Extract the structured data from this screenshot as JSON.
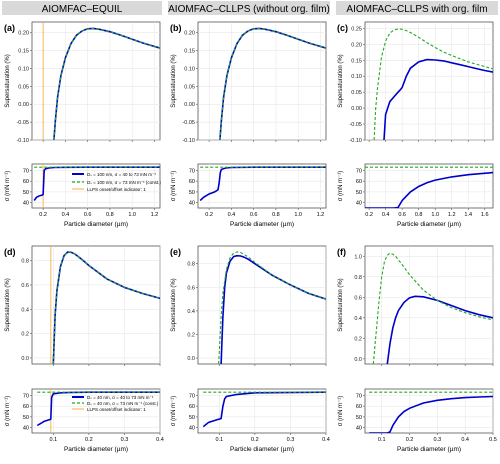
{
  "column_headers": [
    "AIOMFAC–EQUIL",
    "AIOMFAC–CLLPS (without org. film)",
    "AIOMFAC–CLLPS with org. film"
  ],
  "header_bg": "#d9d9d9",
  "colors": {
    "model": "#0000cc",
    "constant": "#22aa22",
    "indicator": "#f5b041"
  },
  "legend_top": {
    "solid": "Dₛ = 100 nm, σ = 40 to 73 mN m⁻¹",
    "dashed": "Dₛ = 100 nm, σ = 73 mN m⁻¹ (const.)",
    "indicator": "LLPS onset/offset indicator: 1"
  },
  "legend_bottom": {
    "solid": "Dₛ = 40 nm, σ = 40 to 73 mN m⁻¹",
    "dashed": "Dₛ = 40 nm, σ = 73 mN m⁻¹ (const.)",
    "indicator": "LLPS onset/offset indicator: 1"
  },
  "chart_data": [
    {
      "panel": "(a)",
      "type": "line",
      "xlabel": "Particle diameter (µm)",
      "ylabel": "Supersaturation (%)",
      "sublabel": "σ (mN m⁻¹)",
      "xlim": [
        0.1,
        1.25
      ],
      "xticks": [
        0.2,
        0.4,
        0.6,
        0.8,
        1.0,
        1.2
      ],
      "ylim": [
        -0.1,
        0.23
      ],
      "yticks": [
        -0.1,
        -0.05,
        0.0,
        0.05,
        0.1,
        0.15,
        0.2
      ],
      "ydec": 2,
      "slim": [
        35,
        76
      ],
      "sticks": [
        40,
        50,
        60,
        70
      ],
      "indicator_x": 0.2,
      "series": [
        {
          "style": "solid",
          "x": [
            0.297,
            0.31,
            0.33,
            0.36,
            0.4,
            0.45,
            0.5,
            0.55,
            0.6,
            0.65,
            0.7,
            0.8,
            0.9,
            1.0,
            1.1,
            1.25
          ],
          "y": [
            -0.1,
            -0.045,
            0.02,
            0.08,
            0.13,
            0.17,
            0.193,
            0.205,
            0.211,
            0.212,
            0.21,
            0.203,
            0.193,
            0.182,
            0.171,
            0.157
          ]
        },
        {
          "style": "dashed",
          "x": [
            0.297,
            0.31,
            0.33,
            0.36,
            0.4,
            0.45,
            0.5,
            0.55,
            0.6,
            0.65,
            0.7,
            0.8,
            0.9,
            1.0,
            1.1,
            1.25
          ],
          "y": [
            -0.1,
            -0.045,
            0.02,
            0.08,
            0.13,
            0.17,
            0.193,
            0.205,
            0.211,
            0.212,
            0.21,
            0.203,
            0.193,
            0.182,
            0.171,
            0.157
          ]
        }
      ],
      "sigma": [
        {
          "style": "solid",
          "x": [
            0.12,
            0.14,
            0.16,
            0.17,
            0.19,
            0.2,
            0.205,
            0.21,
            0.22,
            0.25,
            0.3,
            0.4,
            0.6,
            1.25
          ],
          "y": [
            42,
            45,
            46,
            46.5,
            47,
            47.5,
            60,
            70,
            71.5,
            72.3,
            72.7,
            72.9,
            73,
            73
          ]
        },
        {
          "style": "dashed",
          "x": [
            0.12,
            1.25
          ],
          "y": [
            73,
            73
          ]
        }
      ]
    },
    {
      "panel": "(b)",
      "type": "line",
      "xlabel": "Particle diameter (µm)",
      "ylabel": "Supersaturation (%)",
      "sublabel": "σ (mN m⁻¹)",
      "xlim": [
        0.1,
        1.25
      ],
      "xticks": [
        0.2,
        0.4,
        0.6,
        0.8,
        1.0,
        1.2
      ],
      "ylim": [
        -0.1,
        0.23
      ],
      "yticks": [
        -0.1,
        -0.05,
        0.0,
        0.05,
        0.1,
        0.15,
        0.2
      ],
      "ydec": 2,
      "slim": [
        35,
        76
      ],
      "sticks": [
        40,
        50,
        60,
        70
      ],
      "series": [
        {
          "style": "solid",
          "x": [
            0.297,
            0.31,
            0.33,
            0.36,
            0.4,
            0.45,
            0.5,
            0.55,
            0.6,
            0.65,
            0.7,
            0.8,
            0.9,
            1.0,
            1.1,
            1.25
          ],
          "y": [
            -0.1,
            -0.045,
            0.02,
            0.08,
            0.13,
            0.17,
            0.193,
            0.205,
            0.211,
            0.212,
            0.21,
            0.203,
            0.193,
            0.182,
            0.171,
            0.157
          ]
        },
        {
          "style": "dashed",
          "x": [
            0.297,
            0.31,
            0.33,
            0.36,
            0.4,
            0.45,
            0.5,
            0.55,
            0.6,
            0.65,
            0.7,
            0.8,
            0.9,
            1.0,
            1.1,
            1.25
          ],
          "y": [
            -0.1,
            -0.045,
            0.02,
            0.08,
            0.13,
            0.17,
            0.193,
            0.205,
            0.211,
            0.212,
            0.21,
            0.203,
            0.193,
            0.182,
            0.171,
            0.157
          ]
        }
      ],
      "sigma": [
        {
          "style": "solid",
          "x": [
            0.12,
            0.15,
            0.2,
            0.25,
            0.28,
            0.29,
            0.3,
            0.31,
            0.35,
            0.4,
            0.6,
            1.25
          ],
          "y": [
            42,
            45,
            48,
            50,
            52,
            58,
            68,
            71,
            72.3,
            72.7,
            73,
            73
          ]
        },
        {
          "style": "dashed",
          "x": [
            0.12,
            1.25
          ],
          "y": [
            73,
            73
          ]
        }
      ]
    },
    {
      "panel": "(c)",
      "type": "line",
      "xlabel": "Particle diameter (µm)",
      "ylabel": "Supersaturation (%)",
      "sublabel": "σ (mN m⁻¹)",
      "xlim": [
        0.15,
        1.7
      ],
      "xticks": [
        0.2,
        0.4,
        0.6,
        0.8,
        1.0,
        1.2,
        1.4,
        1.6
      ],
      "ylim": [
        -0.1,
        0.27
      ],
      "yticks": [
        -0.1,
        -0.05,
        0.0,
        0.05,
        0.1,
        0.15,
        0.2,
        0.25
      ],
      "ydec": 2,
      "slim": [
        35,
        76
      ],
      "sticks": [
        40,
        50,
        60,
        70
      ],
      "series": [
        {
          "style": "solid",
          "x": [
            0.38,
            0.4,
            0.45,
            0.5,
            0.55,
            0.58,
            0.6,
            0.65,
            0.7,
            0.8,
            0.9,
            1.0,
            1.1,
            1.2,
            1.3,
            1.4,
            1.5,
            1.6,
            1.7
          ],
          "y": [
            -0.1,
            -0.02,
            0.02,
            0.035,
            0.05,
            0.058,
            0.065,
            0.1,
            0.125,
            0.145,
            0.152,
            0.151,
            0.148,
            0.142,
            0.136,
            0.13,
            0.124,
            0.118,
            0.113
          ]
        },
        {
          "style": "dashed",
          "x": [
            0.26,
            0.28,
            0.3,
            0.35,
            0.4,
            0.45,
            0.5,
            0.55,
            0.6,
            0.65,
            0.7,
            0.8,
            0.9,
            1.0,
            1.1,
            1.2,
            1.4,
            1.7
          ],
          "y": [
            -0.1,
            0.0,
            0.06,
            0.16,
            0.21,
            0.235,
            0.245,
            0.248,
            0.247,
            0.243,
            0.237,
            0.222,
            0.205,
            0.19,
            0.176,
            0.165,
            0.145,
            0.123
          ]
        }
      ],
      "sigma": [
        {
          "style": "solid",
          "x": [
            0.15,
            0.3,
            0.4,
            0.5,
            0.55,
            0.6,
            0.7,
            0.8,
            0.9,
            1.0,
            1.2,
            1.4,
            1.7
          ],
          "y": [
            35,
            35,
            35,
            35,
            35.5,
            42,
            50,
            55,
            58.5,
            61,
            64,
            66,
            68
          ]
        },
        {
          "style": "dashed",
          "x": [
            0.15,
            1.7
          ],
          "y": [
            73,
            73
          ]
        }
      ]
    },
    {
      "panel": "(d)",
      "type": "line",
      "xlabel": "Particle diameter (µm)",
      "ylabel": "Supersaturation (%)",
      "sublabel": "σ (mN m⁻¹)",
      "xlim": [
        0.04,
        0.4
      ],
      "xticks": [
        0.1,
        0.2,
        0.3,
        0.4
      ],
      "ylim": [
        -0.05,
        0.92
      ],
      "yticks": [
        0.0,
        0.2,
        0.4,
        0.6,
        0.8
      ],
      "ydec": 1,
      "slim": [
        35,
        76
      ],
      "sticks": [
        40,
        50,
        60,
        70
      ],
      "indicator_x": 0.093,
      "series": [
        {
          "style": "solid",
          "x": [
            0.1,
            0.105,
            0.11,
            0.12,
            0.13,
            0.14,
            0.15,
            0.16,
            0.18,
            0.2,
            0.25,
            0.3,
            0.35,
            0.4
          ],
          "y": [
            -0.05,
            0.35,
            0.55,
            0.75,
            0.84,
            0.87,
            0.868,
            0.855,
            0.81,
            0.76,
            0.65,
            0.58,
            0.53,
            0.49
          ]
        },
        {
          "style": "dashed",
          "x": [
            0.1,
            0.105,
            0.11,
            0.12,
            0.13,
            0.14,
            0.15,
            0.16,
            0.18,
            0.2,
            0.25,
            0.3,
            0.35,
            0.4
          ],
          "y": [
            -0.05,
            0.35,
            0.55,
            0.75,
            0.84,
            0.87,
            0.868,
            0.855,
            0.81,
            0.76,
            0.65,
            0.58,
            0.53,
            0.49
          ]
        }
      ],
      "sigma": [
        {
          "style": "solid",
          "x": [
            0.055,
            0.065,
            0.075,
            0.085,
            0.09,
            0.093,
            0.095,
            0.1,
            0.12,
            0.15,
            0.2,
            0.4
          ],
          "y": [
            42,
            44,
            46,
            47,
            47.5,
            48,
            68,
            71.5,
            72.5,
            72.8,
            73,
            73
          ]
        },
        {
          "style": "dashed",
          "x": [
            0.055,
            0.4
          ],
          "y": [
            73,
            73
          ]
        }
      ]
    },
    {
      "panel": "(e)",
      "type": "line",
      "xlabel": "Particle diameter (µm)",
      "ylabel": "Supersaturation (%)",
      "sublabel": "σ (mN m⁻¹)",
      "xlim": [
        0.04,
        0.4
      ],
      "xticks": [
        0.1,
        0.2,
        0.3,
        0.4
      ],
      "ylim": [
        -0.05,
        0.95
      ],
      "yticks": [
        0.0,
        0.2,
        0.4,
        0.6,
        0.8
      ],
      "ydec": 1,
      "slim": [
        35,
        76
      ],
      "sticks": [
        40,
        50,
        60,
        70
      ],
      "series": [
        {
          "style": "solid",
          "x": [
            0.105,
            0.11,
            0.115,
            0.12,
            0.13,
            0.14,
            0.15,
            0.16,
            0.17,
            0.18,
            0.2,
            0.25,
            0.3,
            0.35,
            0.4
          ],
          "y": [
            -0.05,
            0.35,
            0.6,
            0.72,
            0.82,
            0.86,
            0.868,
            0.865,
            0.855,
            0.84,
            0.8,
            0.7,
            0.62,
            0.55,
            0.5
          ]
        },
        {
          "style": "dashed",
          "x": [
            0.098,
            0.1,
            0.105,
            0.11,
            0.12,
            0.13,
            0.14,
            0.15,
            0.16,
            0.18,
            0.2,
            0.25,
            0.3,
            0.35,
            0.4
          ],
          "y": [
            -0.05,
            0.05,
            0.35,
            0.55,
            0.75,
            0.85,
            0.89,
            0.9,
            0.895,
            0.86,
            0.81,
            0.7,
            0.62,
            0.55,
            0.5
          ]
        }
      ],
      "sigma": [
        {
          "style": "solid",
          "x": [
            0.055,
            0.07,
            0.09,
            0.105,
            0.11,
            0.115,
            0.12,
            0.15,
            0.2,
            0.4
          ],
          "y": [
            41,
            45,
            47,
            48.5,
            60,
            67,
            69,
            71,
            72.5,
            73
          ]
        },
        {
          "style": "dashed",
          "x": [
            0.055,
            0.4
          ],
          "y": [
            73,
            73
          ]
        }
      ]
    },
    {
      "panel": "(f)",
      "type": "line",
      "xlabel": "Particle diameter (µm)",
      "ylabel": "Supersaturation (%)",
      "sublabel": "σ (mN m⁻¹)",
      "xlim": [
        0.04,
        0.5
      ],
      "xticks": [
        0.1,
        0.2,
        0.3,
        0.4,
        0.5
      ],
      "ylim": [
        -0.05,
        1.1
      ],
      "yticks": [
        0.0,
        0.2,
        0.4,
        0.6,
        0.8,
        1.0
      ],
      "ydec": 1,
      "slim": [
        35,
        76
      ],
      "sticks": [
        40,
        50,
        60,
        70
      ],
      "series": [
        {
          "style": "solid",
          "x": [
            0.12,
            0.13,
            0.14,
            0.15,
            0.16,
            0.18,
            0.2,
            0.22,
            0.25,
            0.3,
            0.35,
            0.4,
            0.45,
            0.5
          ],
          "y": [
            -0.05,
            0.15,
            0.3,
            0.4,
            0.47,
            0.55,
            0.595,
            0.61,
            0.605,
            0.57,
            0.52,
            0.47,
            0.43,
            0.4
          ]
        },
        {
          "style": "dashed",
          "x": [
            0.07,
            0.08,
            0.09,
            0.1,
            0.11,
            0.12,
            0.13,
            0.14,
            0.15,
            0.17,
            0.2,
            0.25,
            0.3,
            0.35,
            0.4,
            0.45,
            0.5
          ],
          "y": [
            -0.05,
            0.25,
            0.55,
            0.8,
            0.95,
            1.01,
            1.03,
            1.02,
            1.0,
            0.93,
            0.82,
            0.67,
            0.57,
            0.5,
            0.45,
            0.41,
            0.38
          ]
        }
      ],
      "sigma": [
        {
          "style": "solid",
          "x": [
            0.055,
            0.1,
            0.12,
            0.13,
            0.14,
            0.16,
            0.18,
            0.2,
            0.25,
            0.3,
            0.35,
            0.4,
            0.45,
            0.5
          ],
          "y": [
            35,
            35,
            35,
            36,
            42,
            50,
            55,
            58,
            63,
            65.5,
            67,
            68,
            68.5,
            69
          ]
        },
        {
          "style": "dashed",
          "x": [
            0.055,
            0.5
          ],
          "y": [
            73,
            73
          ]
        }
      ]
    }
  ]
}
